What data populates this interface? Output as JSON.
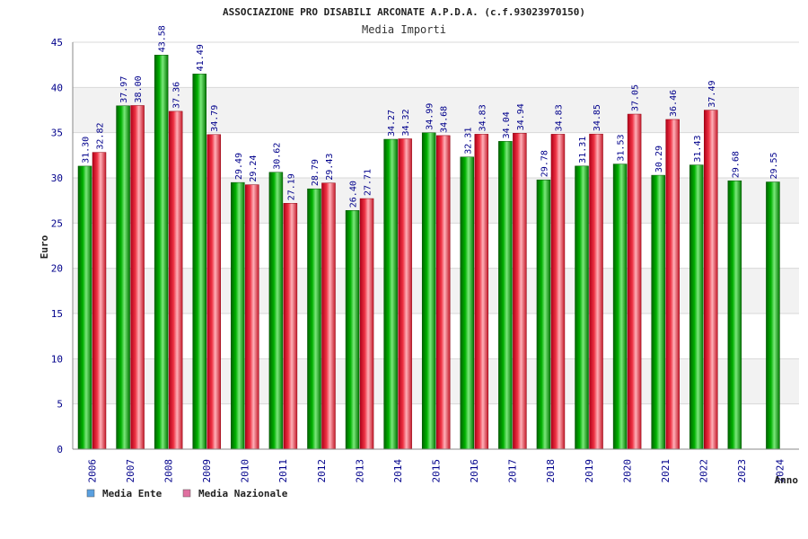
{
  "colors": {
    "ente": "#00a000",
    "nazionale": "#e0303a",
    "legend_ente": "#5aa0e0",
    "legend_nazionale": "#e070a0",
    "axis_text": "#00008b",
    "band": "#f2f2f2",
    "grid": "#d8d8d8"
  },
  "chart_data": {
    "type": "bar",
    "title": "ASSOCIAZIONE PRO DISABILI ARCONATE A.P.D.A. (c.f.93023970150)",
    "subtitle": "Media Importi",
    "xlabel": "Anno",
    "ylabel": "Euro",
    "ylim": [
      0,
      45
    ],
    "yticks": [
      0,
      5,
      10,
      15,
      20,
      25,
      30,
      35,
      40,
      45
    ],
    "ytick_labels": [
      "0",
      "5",
      "10",
      "15",
      "20",
      "25",
      "30",
      "35",
      "40",
      "45"
    ],
    "categories": [
      "2006",
      "2007",
      "2008",
      "2009",
      "2010",
      "2011",
      "2012",
      "2013",
      "2014",
      "2015",
      "2016",
      "2017",
      "2018",
      "2019",
      "2020",
      "2021",
      "2022",
      "2023",
      "2024"
    ],
    "series": [
      {
        "name": "Media Ente",
        "values": [
          31.3,
          37.97,
          43.58,
          41.49,
          29.49,
          30.62,
          28.79,
          26.4,
          34.27,
          34.99,
          32.31,
          34.04,
          29.78,
          31.31,
          31.53,
          30.29,
          31.43,
          29.68,
          29.55
        ],
        "labels": [
          "31.30",
          "37.97",
          "43.58",
          "41.49",
          "29.49",
          "30.62",
          "28.79",
          "26.40",
          "34.27",
          "34.99",
          "32.31",
          "34.04",
          "29.78",
          "31.31",
          "31.53",
          "30.29",
          "31.43",
          "29.68",
          "29.55"
        ]
      },
      {
        "name": "Media Nazionale",
        "values": [
          32.82,
          38.0,
          37.36,
          34.79,
          29.24,
          27.19,
          29.43,
          27.71,
          34.32,
          34.68,
          34.83,
          34.94,
          34.83,
          34.85,
          37.05,
          36.46,
          37.49,
          null,
          null
        ],
        "labels": [
          "32.82",
          "38.00",
          "37.36",
          "34.79",
          "29.24",
          "27.19",
          "29.43",
          "27.71",
          "34.32",
          "34.68",
          "34.83",
          "34.94",
          "34.83",
          "34.85",
          "37.05",
          "36.46",
          "37.49",
          null,
          null
        ]
      }
    ],
    "legend": [
      "Media Ente",
      "Media Nazionale"
    ],
    "legend_position": "bottom-left",
    "grid": true
  }
}
